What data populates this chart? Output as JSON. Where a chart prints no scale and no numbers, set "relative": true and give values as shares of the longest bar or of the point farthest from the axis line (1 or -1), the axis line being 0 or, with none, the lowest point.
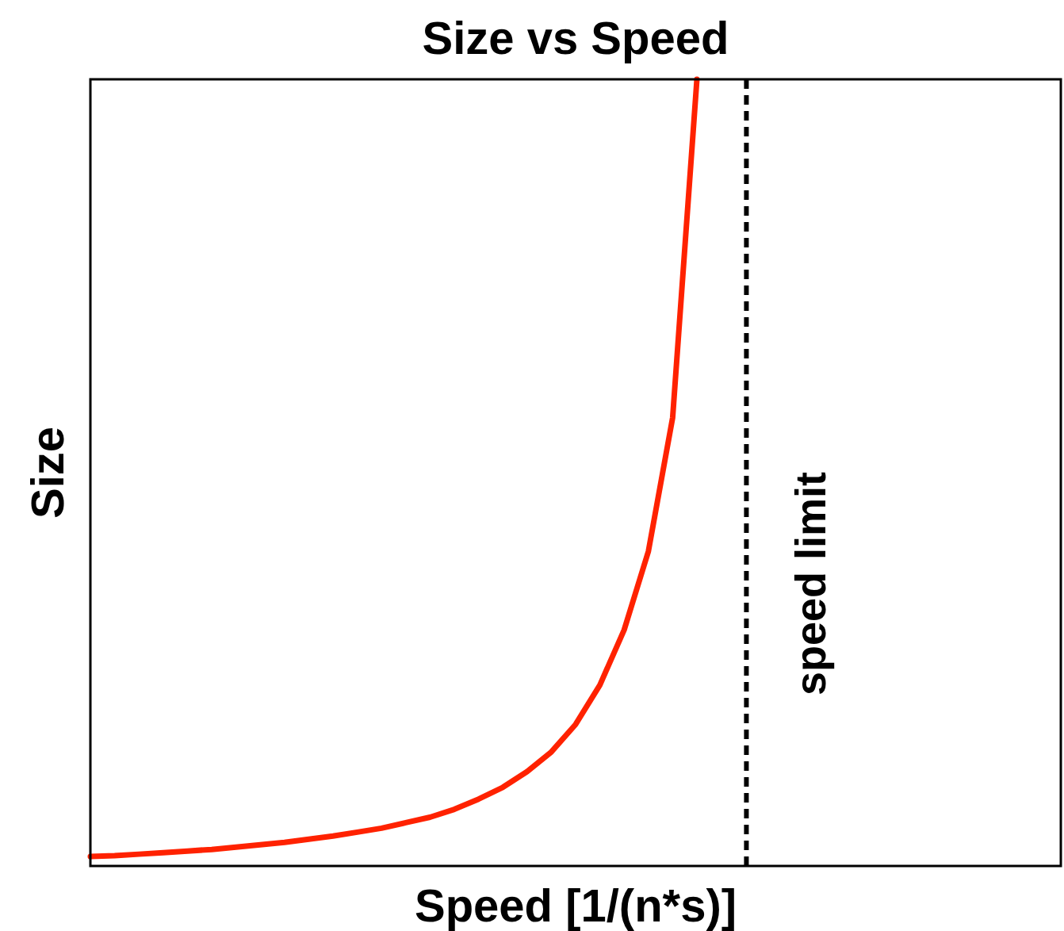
{
  "chart_data": {
    "type": "line",
    "title": "Size vs Speed",
    "xlabel": "Speed [1/(n*s)]",
    "ylabel": "Size",
    "relative": true,
    "categories": [
      null,
      null,
      null,
      null,
      null,
      null,
      null,
      null,
      null,
      null,
      null,
      null,
      null,
      null,
      null,
      null,
      null,
      null,
      null,
      null,
      null,
      null,
      null,
      null,
      null,
      null,
      null,
      null,
      null,
      null,
      null,
      null,
      null,
      null,
      null,
      null,
      null,
      null,
      null,
      null,
      null
    ],
    "series": [
      {
        "color": "#ff2200",
        "values": [
          0.012,
          0.013,
          0.015,
          0.017,
          0.019,
          0.021,
          0.024,
          0.027,
          0.03,
          0.034,
          0.038,
          0.043,
          0.048,
          0.055,
          0.062,
          0.072,
          0.085,
          0.1,
          0.12,
          0.145,
          0.18,
          0.23,
          0.3,
          0.4,
          0.57,
          1,
          null,
          null,
          null,
          null,
          null,
          null,
          null,
          null,
          null,
          null,
          null,
          null,
          null,
          null,
          null
        ]
      }
    ],
    "annotations": [
      "speed limit"
    ]
  }
}
